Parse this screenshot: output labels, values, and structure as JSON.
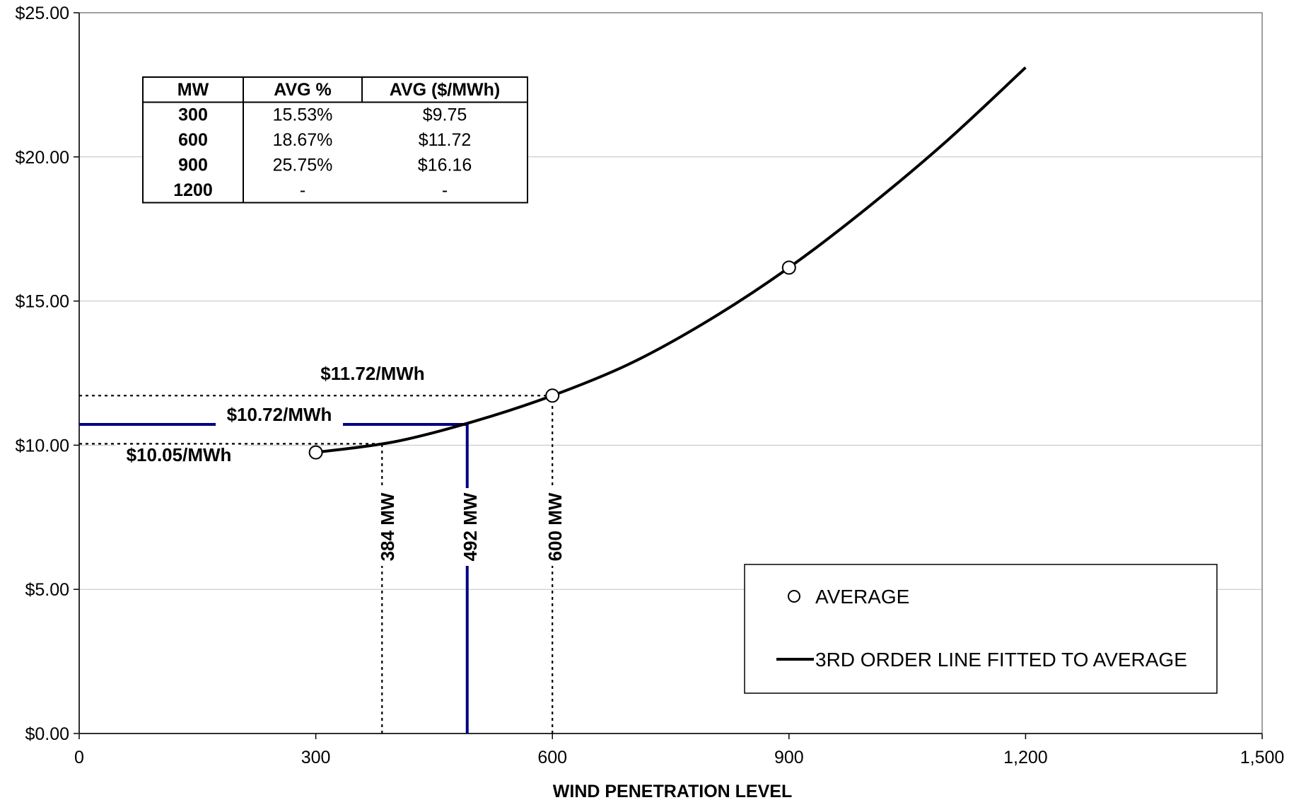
{
  "chart_data": {
    "type": "line",
    "xlabel": "WIND PENETRATION LEVEL",
    "ylabel": "",
    "xlim": [
      0,
      1500
    ],
    "ylim": [
      0,
      25
    ],
    "x_ticks": [
      "0",
      "300",
      "600",
      "900",
      "1,200",
      "1,500"
    ],
    "y_ticks": [
      "$0.00",
      "$5.00",
      "$10.00",
      "$15.00",
      "$20.00",
      "$25.00"
    ],
    "grid": "horizontal",
    "series": [
      {
        "name": "AVERAGE",
        "type": "scatter",
        "marker": "open-circle",
        "x": [
          300,
          600,
          900
        ],
        "y": [
          9.75,
          11.72,
          16.16
        ]
      },
      {
        "name": "3RD ORDER LINE FITTED TO AVERAGE",
        "type": "line",
        "x": [
          300,
          400,
          500,
          600,
          700,
          800,
          900,
          1000,
          1100,
          1200
        ],
        "y": [
          9.75,
          10.12,
          10.82,
          11.72,
          12.85,
          14.36,
          16.16,
          18.25,
          20.55,
          23.1
        ]
      }
    ],
    "reference_lines": [
      {
        "kind": "horizontal",
        "y": 11.72,
        "x_from": 0,
        "x_to": 600,
        "style": "dotted",
        "label": "$11.72/MWh"
      },
      {
        "kind": "horizontal",
        "y": 10.72,
        "x_from": 0,
        "x_to": 492,
        "style": "solid-blue",
        "label": "$10.72/MWh"
      },
      {
        "kind": "horizontal",
        "y": 10.05,
        "x_from": 0,
        "x_to": 384,
        "style": "dotted",
        "label": "$10.05/MWh"
      },
      {
        "kind": "vertical",
        "x": 384,
        "y_from": 0,
        "y_to": 10.05,
        "style": "dotted",
        "label": "384 MW"
      },
      {
        "kind": "vertical",
        "x": 492,
        "y_from": 0,
        "y_to": 10.72,
        "style": "solid-blue",
        "label": "492 MW"
      },
      {
        "kind": "vertical",
        "x": 600,
        "y_from": 0,
        "y_to": 11.72,
        "style": "dotted",
        "label": "600 MW"
      }
    ],
    "legend": {
      "placement": "bottom-right",
      "entries": [
        "AVERAGE",
        "3RD ORDER LINE FITTED TO AVERAGE"
      ]
    },
    "table": {
      "headers": [
        "MW",
        "AVG %",
        "AVG ($/MWh)"
      ],
      "rows": [
        [
          "300",
          "15.53%",
          "$9.75"
        ],
        [
          "600",
          "18.67%",
          "$11.72"
        ],
        [
          "900",
          "25.75%",
          "$16.16"
        ],
        [
          "1200",
          "-",
          "-"
        ]
      ]
    },
    "colors": {
      "curve": "#000000",
      "reference_solid": "#000080",
      "grid": "#c0c0c0"
    }
  }
}
